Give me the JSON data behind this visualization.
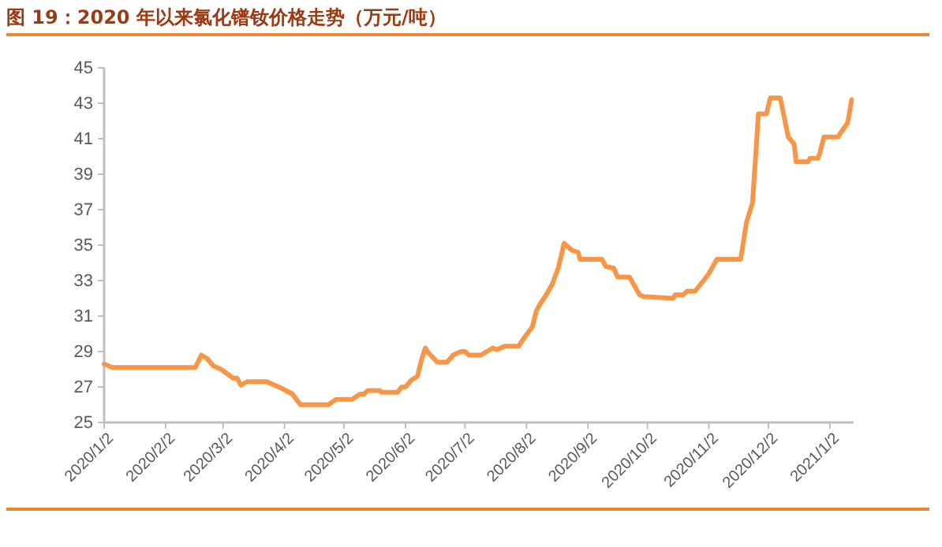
{
  "chart_data": {
    "type": "line",
    "title": "图 19：2020 年以来氯化镨钕价格走势（万元/吨）",
    "x": [
      "2020-01-02",
      "2020-01-06",
      "2020-02-17",
      "2020-02-20",
      "2020-02-23",
      "2020-02-26",
      "2020-03-01",
      "2020-03-07",
      "2020-03-09",
      "2020-03-11",
      "2020-03-14",
      "2020-03-24",
      "2020-03-28",
      "2020-04-01",
      "2020-04-06",
      "2020-04-10",
      "2020-04-24",
      "2020-04-28",
      "2020-05-06",
      "2020-05-10",
      "2020-05-12",
      "2020-05-14",
      "2020-05-20",
      "2020-05-21",
      "2020-05-29",
      "2020-05-31",
      "2020-06-02",
      "2020-06-05",
      "2020-06-08",
      "2020-06-10",
      "2020-06-12",
      "2020-06-13",
      "2020-06-18",
      "2020-06-23",
      "2020-06-26",
      "2020-06-30",
      "2020-07-02",
      "2020-07-04",
      "2020-07-10",
      "2020-07-16",
      "2020-07-18",
      "2020-07-22",
      "2020-07-29",
      "2020-08-01",
      "2020-08-05",
      "2020-08-07",
      "2020-08-09",
      "2020-08-12",
      "2020-08-15",
      "2020-08-18",
      "2020-08-21",
      "2020-08-25",
      "2020-08-28",
      "2020-08-29",
      "2020-09-09",
      "2020-09-11",
      "2020-09-15",
      "2020-09-17",
      "2020-09-23",
      "2020-09-28",
      "2020-09-30",
      "2020-10-15",
      "2020-10-16",
      "2020-10-20",
      "2020-10-22",
      "2020-10-26",
      "2020-10-31",
      "2020-11-02",
      "2020-11-06",
      "2020-11-18",
      "2020-11-21",
      "2020-11-24",
      "2020-11-27",
      "2020-12-01",
      "2020-12-03",
      "2020-12-08",
      "2020-12-12",
      "2020-12-15",
      "2020-12-16",
      "2020-12-22",
      "2020-12-23",
      "2020-12-27",
      "2020-12-28",
      "2020-12-30",
      "2021-01-06",
      "2021-01-11",
      "2021-01-13"
    ],
    "series": [
      {
        "color": "#f79646",
        "values": [
          28.3,
          28.1,
          28.1,
          28.8,
          28.6,
          28.2,
          28.0,
          27.5,
          27.5,
          27.1,
          27.3,
          27.3,
          27.1,
          26.9,
          26.6,
          26.0,
          26.0,
          26.3,
          26.3,
          26.6,
          26.6,
          26.8,
          26.8,
          26.7,
          26.7,
          27.0,
          27.0,
          27.4,
          27.6,
          28.5,
          29.2,
          29.0,
          28.4,
          28.4,
          28.8,
          29.0,
          29.0,
          28.8,
          28.8,
          29.2,
          29.1,
          29.3,
          29.3,
          29.8,
          30.4,
          31.3,
          31.7,
          32.2,
          32.8,
          33.7,
          35.1,
          34.7,
          34.6,
          34.2,
          34.2,
          33.8,
          33.7,
          33.2,
          33.2,
          32.2,
          32.1,
          32.0,
          32.2,
          32.2,
          32.4,
          32.4,
          33.1,
          33.4,
          34.2,
          34.2,
          36.3,
          37.4,
          42.4,
          42.4,
          43.3,
          43.3,
          41.1,
          40.7,
          39.7,
          39.7,
          39.9,
          39.9,
          40.2,
          41.1,
          41.1,
          41.9,
          43.2
        ]
      }
    ],
    "xlim": [
      "2020-01-02",
      "2021-01-14"
    ],
    "xticks": [
      {
        "value": "2020-01-02",
        "label": "2020/1/2"
      },
      {
        "value": "2020-02-02",
        "label": "2020/2/2"
      },
      {
        "value": "2020-03-02",
        "label": "2020/3/2"
      },
      {
        "value": "2020-04-02",
        "label": "2020/4/2"
      },
      {
        "value": "2020-05-02",
        "label": "2020/5/2"
      },
      {
        "value": "2020-06-02",
        "label": "2020/6/2"
      },
      {
        "value": "2020-07-02",
        "label": "2020/7/2"
      },
      {
        "value": "2020-08-02",
        "label": "2020/8/2"
      },
      {
        "value": "2020-09-02",
        "label": "2020/9/2"
      },
      {
        "value": "2020-10-02",
        "label": "2020/10/2"
      },
      {
        "value": "2020-11-02",
        "label": "2020/11/2"
      },
      {
        "value": "2020-12-02",
        "label": "2020/12/2"
      },
      {
        "value": "2021-01-02",
        "label": "2021/1/2"
      }
    ],
    "ylim": [
      25,
      45
    ],
    "yticks": [
      25,
      27,
      29,
      31,
      33,
      35,
      37,
      39,
      41,
      43,
      45
    ],
    "grid": false,
    "marker": "none",
    "line_style": "solid"
  }
}
